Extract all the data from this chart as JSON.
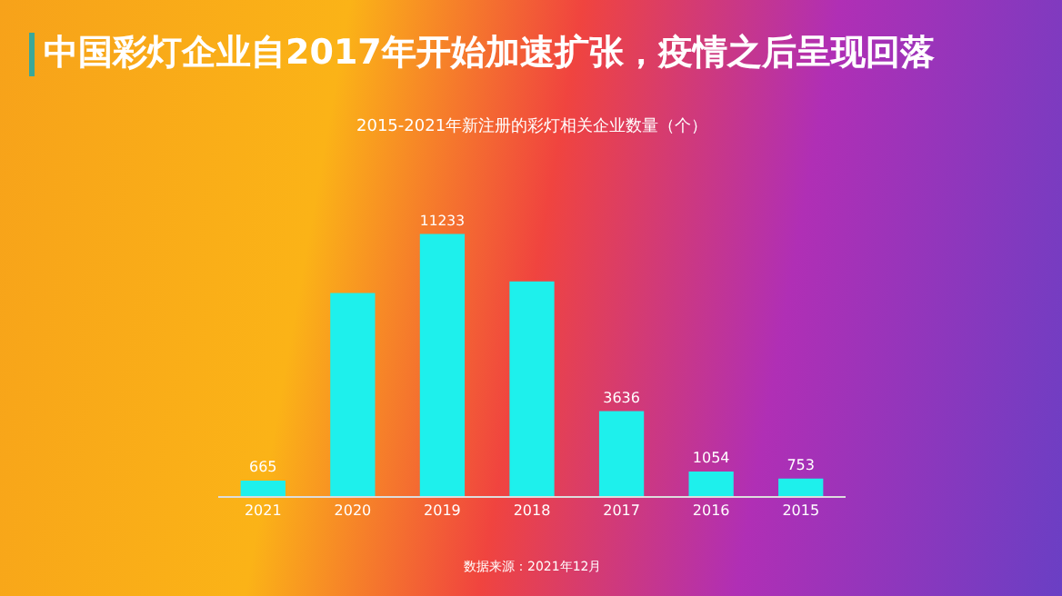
{
  "chart_data": {
    "type": "bar",
    "title": "中国彩灯企业自2017年开始加速扩张，疫情之后呈现回落",
    "subtitle": "2015-2021年新注册的彩灯相关企业数量（个）",
    "categories": [
      "2021",
      "2020",
      "2019",
      "2018",
      "2017",
      "2016",
      "2015"
    ],
    "values": [
      665,
      8700,
      11233,
      9200,
      3636,
      1054,
      753
    ],
    "value_labels": [
      "665",
      null,
      "11233",
      null,
      "3636",
      "1054",
      "753"
    ],
    "color": "#1ef0ec",
    "annotations": [
      "数据来源：2021年12月"
    ]
  }
}
